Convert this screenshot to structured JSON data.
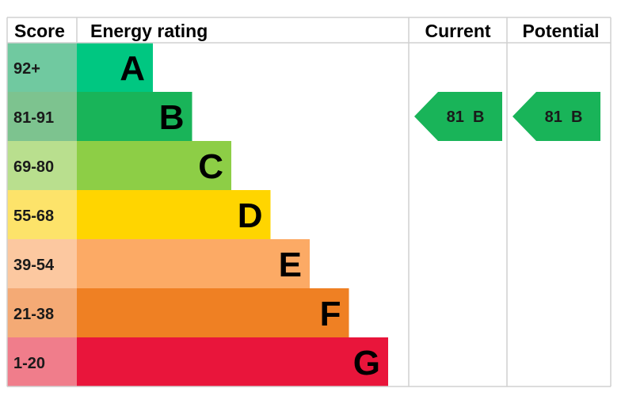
{
  "headers": {
    "score": "Score",
    "energy_rating": "Energy rating",
    "current": "Current",
    "potential": "Potential"
  },
  "chart_data": {
    "type": "bar",
    "bands": [
      {
        "score": "92+",
        "letter": "A",
        "bar_color": "#00c781",
        "score_bg": "#70c9a0"
      },
      {
        "score": "81-91",
        "letter": "B",
        "bar_color": "#19b459",
        "score_bg": "#7dc38f"
      },
      {
        "score": "69-80",
        "letter": "C",
        "bar_color": "#8dce46",
        "score_bg": "#b9df8e"
      },
      {
        "score": "55-68",
        "letter": "D",
        "bar_color": "#ffd500",
        "score_bg": "#fde36a"
      },
      {
        "score": "39-54",
        "letter": "E",
        "bar_color": "#fcaa65",
        "score_bg": "#fcc8a0"
      },
      {
        "score": "21-38",
        "letter": "F",
        "bar_color": "#ef8023",
        "score_bg": "#f4aa75"
      },
      {
        "score": "1-20",
        "letter": "G",
        "bar_color": "#e9153b",
        "score_bg": "#f07d8b"
      }
    ],
    "current": {
      "value": 81,
      "letter": "B",
      "label": "81  B",
      "color": "#19b459"
    },
    "potential": {
      "value": 81,
      "letter": "B",
      "label": "81  B",
      "color": "#19b459"
    }
  }
}
